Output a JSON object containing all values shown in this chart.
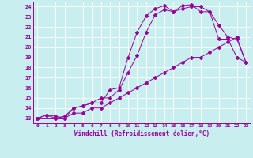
{
  "title": "",
  "xlabel": "Windchill (Refroidissement éolien,°C)",
  "bg_color": "#c8eef0",
  "line_color": "#990099",
  "grid_color": "#ffffff",
  "xlim": [
    -0.5,
    23.5
  ],
  "ylim": [
    12.5,
    24.5
  ],
  "xticks": [
    0,
    1,
    2,
    3,
    4,
    5,
    6,
    7,
    8,
    9,
    10,
    11,
    12,
    13,
    14,
    15,
    16,
    17,
    18,
    19,
    20,
    21,
    22,
    23
  ],
  "yticks": [
    13,
    14,
    15,
    16,
    17,
    18,
    19,
    20,
    21,
    22,
    23,
    24
  ],
  "series1_x": [
    0,
    1,
    2,
    3,
    4,
    5,
    6,
    7,
    8,
    9,
    10,
    11,
    12,
    13,
    14,
    15,
    16,
    17,
    18,
    19,
    20,
    21,
    22,
    23
  ],
  "series1_y": [
    13,
    13.3,
    13,
    13,
    13.5,
    13.5,
    14,
    14,
    14.5,
    15,
    15.5,
    16,
    16.5,
    17,
    17.5,
    18,
    18.5,
    19,
    19,
    19.5,
    20,
    20.5,
    21,
    18.5
  ],
  "series2_x": [
    0,
    2,
    3,
    4,
    5,
    6,
    7,
    8,
    9,
    10,
    11,
    12,
    13,
    14,
    15,
    16,
    17,
    18,
    19,
    20,
    21,
    22,
    23
  ],
  "series2_y": [
    13,
    13,
    13.2,
    14,
    14.2,
    14.5,
    15,
    15,
    15.8,
    17.5,
    19.2,
    21.5,
    23.2,
    23.7,
    23.5,
    23.8,
    24,
    24,
    23.5,
    22.2,
    21,
    20.8,
    18.5
  ],
  "series3_x": [
    0,
    1,
    2,
    3,
    4,
    5,
    6,
    7,
    8,
    9,
    10,
    11,
    12,
    13,
    14,
    15,
    16,
    17,
    18,
    19,
    20,
    21,
    22,
    23
  ],
  "series3_y": [
    13,
    13.3,
    13.2,
    13,
    14,
    14.2,
    14.5,
    14.5,
    15.8,
    16,
    19,
    21.5,
    23.1,
    23.8,
    24.1,
    23.5,
    24.1,
    24.2,
    23.5,
    23.5,
    20.8,
    20.8,
    19,
    18.5
  ]
}
